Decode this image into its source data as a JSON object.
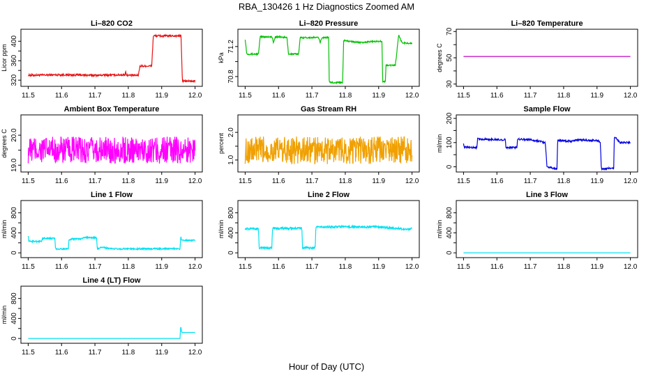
{
  "figure": {
    "title": "RBA_130426  1 Hz Diagnostics Zoomed AM",
    "xlabel": "Hour of Day (UTC)"
  },
  "chart_data": [
    {
      "id": "co2",
      "type": "line",
      "title": "Li–820 CO2",
      "ylabel": "Licor ppm",
      "color": "#e81010",
      "xlim": [
        11.5,
        12.0
      ],
      "xticks": [
        "11.5",
        "11.6",
        "11.7",
        "11.8",
        "11.9",
        "12.0"
      ],
      "ylim": [
        312,
        420
      ],
      "yticks": [
        320,
        340,
        360,
        380,
        400
      ],
      "ytick_labels": [
        "320",
        "",
        "360",
        "",
        "400"
      ],
      "points": [
        [
          11.5,
          330
        ],
        [
          11.6,
          331
        ],
        [
          11.7,
          330
        ],
        [
          11.79,
          331
        ],
        [
          11.792,
          338
        ],
        [
          11.795,
          330
        ],
        [
          11.83,
          330
        ],
        [
          11.835,
          349
        ],
        [
          11.87,
          349
        ],
        [
          11.875,
          411
        ],
        [
          11.958,
          411
        ],
        [
          11.962,
          318
        ],
        [
          12.0,
          318
        ]
      ],
      "noise": 2
    },
    {
      "id": "pressure",
      "type": "line",
      "title": "Li–820 Pressure",
      "ylabel": "kPa",
      "color": "#00c000",
      "xlim": [
        11.5,
        12.0
      ],
      "xticks": [
        "11.5",
        "11.6",
        "11.7",
        "11.8",
        "11.9",
        "12.0"
      ],
      "ylim": [
        70.7,
        71.4
      ],
      "yticks": [
        70.8,
        71.0,
        71.2
      ],
      "ytick_labels": [
        "70.8",
        "",
        "71.2"
      ],
      "points": [
        [
          11.5,
          71.3
        ],
        [
          11.505,
          71.1
        ],
        [
          11.54,
          71.1
        ],
        [
          11.545,
          71.33
        ],
        [
          11.58,
          71.33
        ],
        [
          11.585,
          71.25
        ],
        [
          11.59,
          71.33
        ],
        [
          11.625,
          71.32
        ],
        [
          11.63,
          71.1
        ],
        [
          11.66,
          71.1
        ],
        [
          11.665,
          71.32
        ],
        [
          11.72,
          71.32
        ],
        [
          11.725,
          71.25
        ],
        [
          11.73,
          71.32
        ],
        [
          11.75,
          71.32
        ],
        [
          11.752,
          70.72
        ],
        [
          11.792,
          70.72
        ],
        [
          11.795,
          71.28
        ],
        [
          11.85,
          71.25
        ],
        [
          11.88,
          71.27
        ],
        [
          11.91,
          71.27
        ],
        [
          11.912,
          70.73
        ],
        [
          11.92,
          70.73
        ],
        [
          11.922,
          70.95
        ],
        [
          11.95,
          70.95
        ],
        [
          11.96,
          71.35
        ],
        [
          11.97,
          71.25
        ],
        [
          12.0,
          71.24
        ]
      ],
      "noise": 0.01
    },
    {
      "id": "temperature",
      "type": "line",
      "title": "Li–820 Temperature",
      "ylabel": "degrees C",
      "color": "#c000c0",
      "xlim": [
        11.5,
        12.0
      ],
      "xticks": [
        "11.5",
        "11.6",
        "11.7",
        "11.8",
        "11.9",
        "12.0"
      ],
      "ylim": [
        30,
        70
      ],
      "yticks": [
        30,
        40,
        50,
        60,
        70
      ],
      "ytick_labels": [
        "30",
        "",
        "50",
        "",
        "70"
      ],
      "points": [
        [
          11.5,
          51
        ],
        [
          12.0,
          51
        ]
      ],
      "noise": 0
    },
    {
      "id": "ambient",
      "type": "line",
      "title": "Ambient Box Temperature",
      "ylabel": "degrees C",
      "color": "#ff00ff",
      "xlim": [
        11.5,
        12.0
      ],
      "xticks": [
        "11.5",
        "11.6",
        "11.7",
        "11.8",
        "11.9",
        "12.0"
      ],
      "ylim": [
        18.85,
        20.6
      ],
      "yticks": [
        19.0,
        19.5,
        20.0
      ],
      "ytick_labels": [
        "19.0",
        "",
        "20.0"
      ],
      "points": [
        [
          11.5,
          19.5
        ],
        [
          12.0,
          19.5
        ]
      ],
      "noise": 0.45
    },
    {
      "id": "rh",
      "type": "line",
      "title": "Gas Stream RH",
      "ylabel": "percent",
      "color": "#f0a000",
      "xlim": [
        11.5,
        12.0
      ],
      "xticks": [
        "11.5",
        "11.6",
        "11.7",
        "11.8",
        "11.9",
        "12.0"
      ],
      "ylim": [
        0.65,
        2.55
      ],
      "yticks": [
        1.0,
        1.5,
        2.0
      ],
      "ytick_labels": [
        "1.0",
        "",
        "2.0"
      ],
      "points": [
        [
          11.5,
          1.35
        ],
        [
          12.0,
          1.35
        ]
      ],
      "noise": 0.5
    },
    {
      "id": "sample",
      "type": "line",
      "title": "Sample Flow",
      "ylabel": "ml/min",
      "color": "#0000e0",
      "xlim": [
        11.5,
        12.0
      ],
      "xticks": [
        "11.5",
        "11.6",
        "11.7",
        "11.8",
        "11.9",
        "12.0"
      ],
      "ylim": [
        -12,
        205
      ],
      "yticks": [
        0,
        50,
        100,
        150,
        200
      ],
      "ytick_labels": [
        "0",
        "",
        "100",
        "",
        "200"
      ],
      "points": [
        [
          11.5,
          100
        ],
        [
          11.502,
          80
        ],
        [
          11.54,
          80
        ],
        [
          11.542,
          115
        ],
        [
          11.6,
          112
        ],
        [
          11.625,
          112
        ],
        [
          11.627,
          80
        ],
        [
          11.66,
          80
        ],
        [
          11.662,
          115
        ],
        [
          11.7,
          112
        ],
        [
          11.73,
          105
        ],
        [
          11.745,
          100
        ],
        [
          11.75,
          0
        ],
        [
          11.78,
          -8
        ],
        [
          11.782,
          110
        ],
        [
          11.82,
          105
        ],
        [
          11.85,
          112
        ],
        [
          11.88,
          108
        ],
        [
          11.9,
          110
        ],
        [
          11.91,
          100
        ],
        [
          11.913,
          -10
        ],
        [
          11.95,
          -5
        ],
        [
          11.952,
          125
        ],
        [
          11.97,
          100
        ],
        [
          12.0,
          100
        ]
      ],
      "noise": 4
    },
    {
      "id": "line1",
      "type": "line",
      "title": "Line 1 Flow",
      "ylabel": "ml/min",
      "color": "#00e0f0",
      "xlim": [
        11.5,
        12.0
      ],
      "xticks": [
        "11.5",
        "11.6",
        "11.7",
        "11.8",
        "11.9",
        "12.0"
      ],
      "ylim": [
        -50,
        1000
      ],
      "yticks": [
        0,
        200,
        400,
        600,
        800
      ],
      "ytick_labels": [
        "0",
        "",
        "400",
        "",
        "800"
      ],
      "points": [
        [
          11.5,
          350
        ],
        [
          11.502,
          230
        ],
        [
          11.54,
          230
        ],
        [
          11.542,
          290
        ],
        [
          11.58,
          290
        ],
        [
          11.582,
          80
        ],
        [
          11.62,
          80
        ],
        [
          11.622,
          250
        ],
        [
          11.63,
          280
        ],
        [
          11.66,
          280
        ],
        [
          11.665,
          310
        ],
        [
          11.705,
          300
        ],
        [
          11.707,
          80
        ],
        [
          11.72,
          110
        ],
        [
          11.75,
          80
        ],
        [
          11.8,
          80
        ],
        [
          11.9,
          80
        ],
        [
          11.955,
          80
        ],
        [
          11.957,
          330
        ],
        [
          11.96,
          250
        ],
        [
          12.0,
          250
        ]
      ],
      "noise": 15
    },
    {
      "id": "line2",
      "type": "line",
      "title": "Line 2 Flow",
      "ylabel": "ml/min",
      "color": "#00e0f0",
      "xlim": [
        11.5,
        12.0
      ],
      "xticks": [
        "11.5",
        "11.6",
        "11.7",
        "11.8",
        "11.9",
        "12.0"
      ],
      "ylim": [
        -50,
        1000
      ],
      "yticks": [
        0,
        200,
        400,
        600,
        800
      ],
      "ytick_labels": [
        "0",
        "",
        "400",
        "",
        "800"
      ],
      "points": [
        [
          11.5,
          480
        ],
        [
          11.54,
          480
        ],
        [
          11.542,
          100
        ],
        [
          11.58,
          100
        ],
        [
          11.582,
          490
        ],
        [
          11.67,
          490
        ],
        [
          11.672,
          100
        ],
        [
          11.71,
          100
        ],
        [
          11.712,
          520
        ],
        [
          11.8,
          520
        ],
        [
          11.9,
          520
        ],
        [
          11.97,
          480
        ],
        [
          12.0,
          480
        ]
      ],
      "noise": 22
    },
    {
      "id": "line3",
      "type": "line",
      "title": "Line 3 Flow",
      "ylabel": "ml/min",
      "color": "#00e0f0",
      "xlim": [
        11.5,
        12.0
      ],
      "xticks": [
        "11.5",
        "11.6",
        "11.7",
        "11.8",
        "11.9",
        "12.0"
      ],
      "ylim": [
        -50,
        1000
      ],
      "yticks": [
        0,
        200,
        400,
        600,
        800
      ],
      "ytick_labels": [
        "0",
        "",
        "400",
        "",
        "800"
      ],
      "points": [
        [
          11.5,
          0
        ],
        [
          12.0,
          0
        ]
      ],
      "noise": 0
    },
    {
      "id": "line4",
      "type": "line",
      "title": "Line 4 (LT) Flow",
      "ylabel": "ml/min",
      "color": "#00e0f0",
      "xlim": [
        11.5,
        12.0
      ],
      "xticks": [
        "11.5",
        "11.6",
        "11.7",
        "11.8",
        "11.9",
        "12.0"
      ],
      "ylim": [
        -50,
        1000
      ],
      "yticks": [
        0,
        200,
        400,
        600,
        800
      ],
      "ytick_labels": [
        "0",
        "",
        "400",
        "",
        "800"
      ],
      "points": [
        [
          11.5,
          0
        ],
        [
          11.955,
          0
        ],
        [
          11.957,
          250
        ],
        [
          11.96,
          120
        ],
        [
          12.0,
          120
        ]
      ],
      "noise": 0
    }
  ]
}
